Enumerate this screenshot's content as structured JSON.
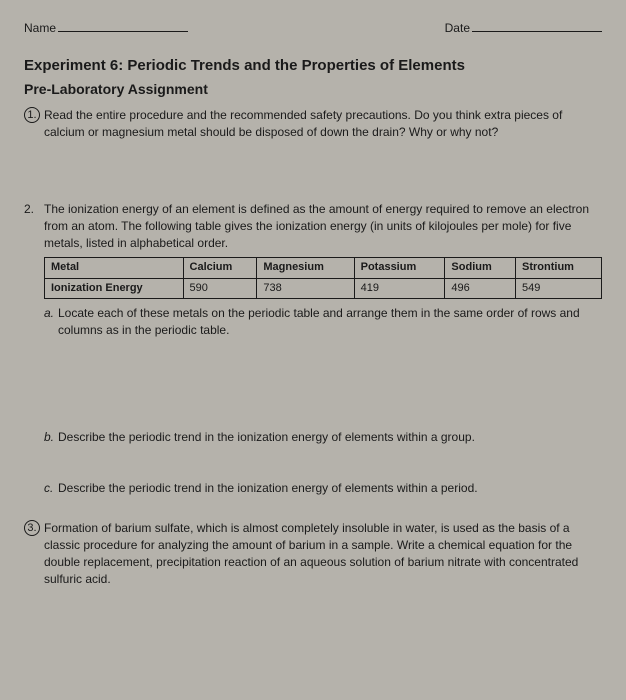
{
  "header": {
    "name_label": "Name",
    "date_label": "Date"
  },
  "title": "Experiment 6: Periodic Trends and the Properties of Elements",
  "subtitle": "Pre-Laboratory Assignment",
  "q1": {
    "num": "1.",
    "text": "Read the entire procedure and the recommended safety precautions. Do you think extra pieces of calcium or magnesium metal should be disposed of down the drain? Why or why not?"
  },
  "q2": {
    "num": "2.",
    "intro": "The ionization energy of an element is defined as the amount of energy required to remove an electron from an atom. The following table gives the ionization energy (in units of kilojoules per mole) for five metals, listed in alphabetical order.",
    "table": {
      "headers": [
        "Metal",
        "Calcium",
        "Magnesium",
        "Potassium",
        "Sodium",
        "Strontium"
      ],
      "row_label": "Ionization Energy",
      "values": [
        "590",
        "738",
        "419",
        "496",
        "549"
      ]
    },
    "a": {
      "letter": "a.",
      "text": "Locate each of these metals on the periodic table and arrange them in the same order of rows and columns as in the periodic table."
    },
    "b": {
      "letter": "b.",
      "text": "Describe the periodic trend in the ionization energy of elements within a group."
    },
    "c": {
      "letter": "c.",
      "text": "Describe the periodic trend in the ionization energy of elements within a period."
    }
  },
  "q3": {
    "num": "3.",
    "text": "Formation of barium sulfate, which is almost completely insoluble in water, is used as the basis of a classic procedure for analyzing the amount of barium in a sample. Write a chemical equation for the double replacement,   precipitation reaction of an aqueous solution of barium nitrate with concentrated sulfuric acid."
  }
}
